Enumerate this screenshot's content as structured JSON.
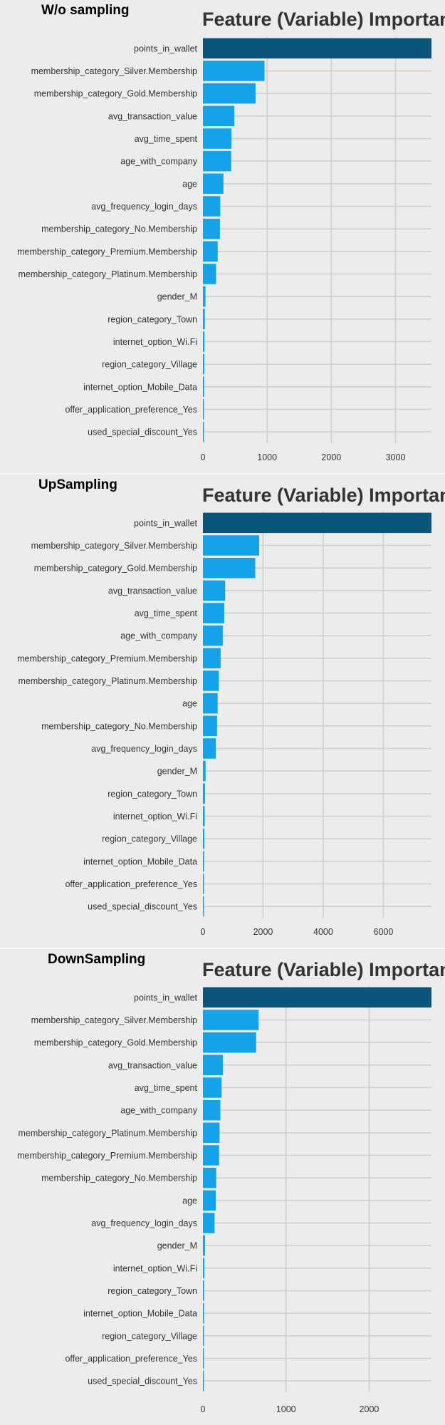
{
  "chart_data": [
    {
      "type": "bar",
      "panel_label": "W/o sampling",
      "title": "Feature (Variable) Importance",
      "xlim": [
        0,
        3560
      ],
      "xticks": [
        0,
        1000,
        2000,
        3000
      ],
      "highlight_color": "#0a557c",
      "bar_color": "#14a3e8",
      "categories": [
        "points_in_wallet",
        "membership_category_Silver.Membership",
        "membership_category_Gold.Membership",
        "avg_transaction_value",
        "avg_time_spent",
        "age_with_company",
        "age",
        "avg_frequency_login_days",
        "membership_category_No.Membership",
        "membership_category_Premium.Membership",
        "membership_category_Platinum.Membership",
        "gender_M",
        "region_category_Town",
        "internet_option_Wi.Fi",
        "region_category_Village",
        "internet_option_Mobile_Data",
        "offer_application_preference_Yes",
        "used_special_discount_Yes"
      ],
      "values": [
        3560,
        960,
        820,
        490,
        445,
        440,
        320,
        270,
        265,
        230,
        205,
        40,
        30,
        25,
        22,
        20,
        15,
        10
      ]
    },
    {
      "type": "bar",
      "panel_label": "UpSampling",
      "title": "Feature (Variable) Importance",
      "xlim": [
        0,
        7600
      ],
      "xticks": [
        0,
        2000,
        4000,
        6000
      ],
      "highlight_color": "#0a557c",
      "bar_color": "#14a3e8",
      "categories": [
        "points_in_wallet",
        "membership_category_Silver.Membership",
        "membership_category_Gold.Membership",
        "avg_transaction_value",
        "avg_time_spent",
        "age_with_company",
        "membership_category_Premium.Membership",
        "membership_category_Platinum.Membership",
        "age",
        "membership_category_No.Membership",
        "avg_frequency_login_days",
        "gender_M",
        "region_category_Town",
        "internet_option_Wi.Fi",
        "region_category_Village",
        "internet_option_Mobile_Data",
        "offer_application_preference_Yes",
        "used_special_discount_Yes"
      ],
      "values": [
        7600,
        1870,
        1740,
        740,
        710,
        660,
        590,
        530,
        490,
        470,
        430,
        90,
        70,
        60,
        50,
        40,
        30,
        20
      ]
    },
    {
      "type": "bar",
      "panel_label": "DownSampling",
      "title": "Feature (Variable) Importance",
      "xlim": [
        0,
        2750
      ],
      "xticks": [
        0,
        1000,
        2000
      ],
      "highlight_color": "#0a557c",
      "bar_color": "#14a3e8",
      "categories": [
        "points_in_wallet",
        "membership_category_Silver.Membership",
        "membership_category_Gold.Membership",
        "avg_transaction_value",
        "avg_time_spent",
        "age_with_company",
        "membership_category_Platinum.Membership",
        "membership_category_Premium.Membership",
        "membership_category_No.Membership",
        "age",
        "avg_frequency_login_days",
        "gender_M",
        "internet_option_Wi.Fi",
        "region_category_Town",
        "internet_option_Mobile_Data",
        "region_category_Village",
        "offer_application_preference_Yes",
        "used_special_discount_Yes"
      ],
      "values": [
        2750,
        670,
        640,
        240,
        225,
        210,
        200,
        195,
        160,
        155,
        140,
        25,
        18,
        15,
        14,
        13,
        11,
        10
      ]
    }
  ]
}
